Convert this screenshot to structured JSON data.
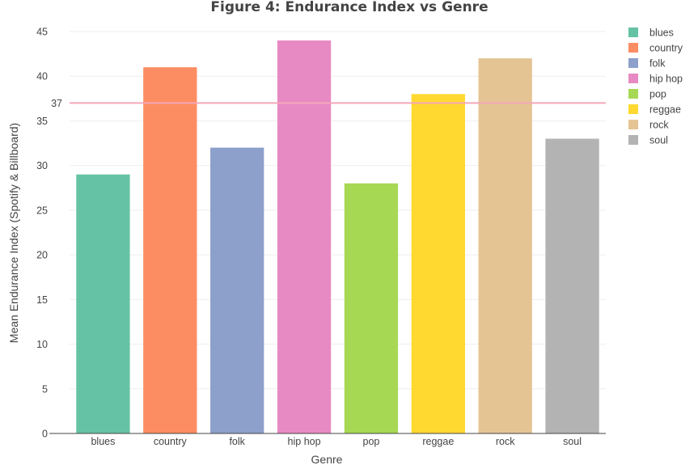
{
  "chart_data": {
    "type": "bar",
    "title": "Figure 4: Endurance Index vs Genre",
    "xlabel": "Genre",
    "ylabel": "Mean Endurance Index (Spotify & Billboard)",
    "categories": [
      "blues",
      "country",
      "folk",
      "hip hop",
      "pop",
      "reggae",
      "rock",
      "soul"
    ],
    "values": [
      29,
      41,
      32,
      44,
      28,
      38,
      42,
      33
    ],
    "colors": [
      "#66c2a5",
      "#fc8d62",
      "#8da0cb",
      "#e78ac3",
      "#a6d854",
      "#ffd92f",
      "#e5c494",
      "#b3b3b3"
    ],
    "ylim": [
      0,
      45
    ],
    "yticks": [
      0,
      5,
      10,
      15,
      20,
      25,
      30,
      35,
      40,
      45
    ],
    "grid": true,
    "legend_position": "top-right",
    "reference_line": {
      "value": 37,
      "label": "37",
      "color": "#f4a7b9"
    }
  }
}
